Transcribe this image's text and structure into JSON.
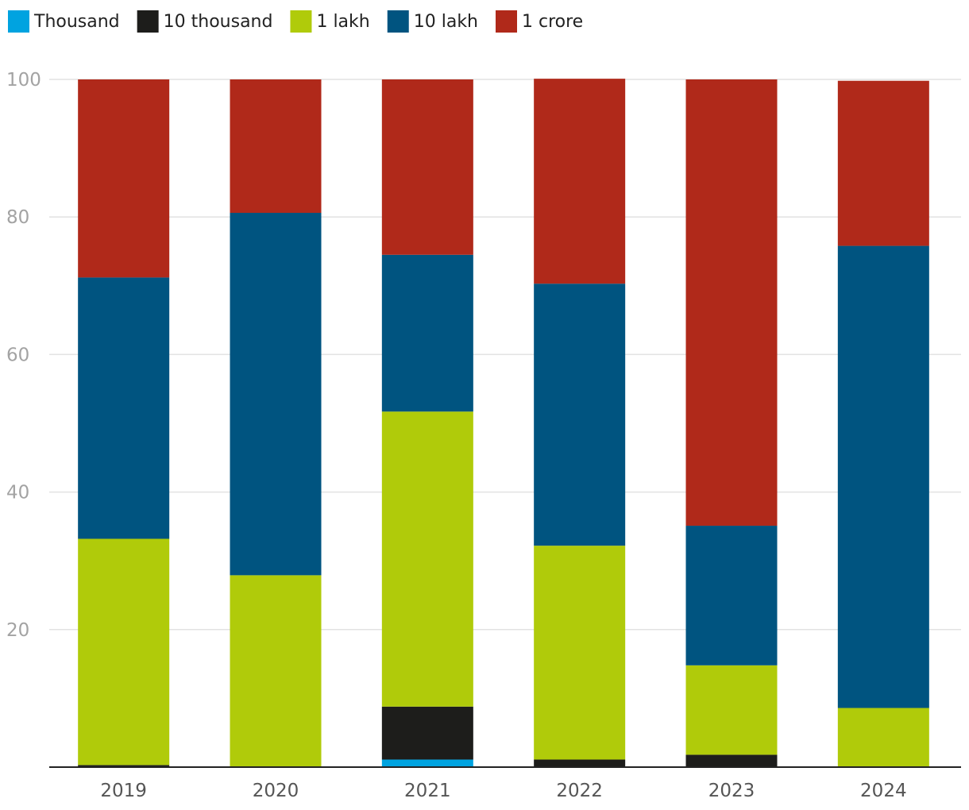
{
  "chart_data": {
    "type": "bar",
    "stacked": true,
    "categories": [
      "2019",
      "2020",
      "2021",
      "2022",
      "2023",
      "2024"
    ],
    "series": [
      {
        "name": "Thousand",
        "color": "#00a3e0",
        "values": [
          0,
          0,
          1.1,
          0,
          0,
          0
        ]
      },
      {
        "name": "10 thousand",
        "color": "#1d1d1b",
        "values": [
          0.3,
          0,
          7.7,
          1.1,
          1.8,
          0
        ]
      },
      {
        "name": "1 lakh",
        "color": "#b0cb0a",
        "values": [
          32.9,
          27.9,
          42.9,
          31.1,
          13.0,
          8.6
        ]
      },
      {
        "name": "10 lakh",
        "color": "#005480",
        "values": [
          38.0,
          52.7,
          22.8,
          38.1,
          20.3,
          67.2
        ]
      },
      {
        "name": "1 crore",
        "color": "#b0291a",
        "values": [
          28.8,
          19.4,
          25.5,
          29.8,
          64.9,
          24.0
        ]
      }
    ],
    "ylim": [
      0,
      100
    ],
    "yticks": [
      20,
      40,
      60,
      80,
      100
    ],
    "grid": true,
    "legend": "top-left"
  }
}
